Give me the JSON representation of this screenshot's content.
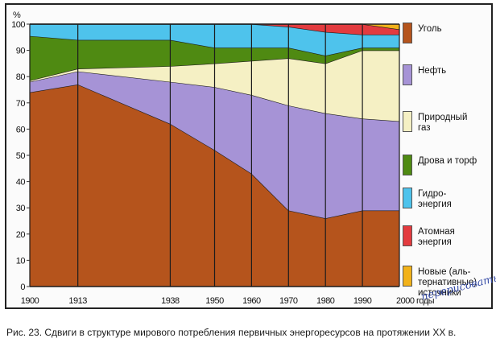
{
  "caption": "Рис. 23. Сдвиги в структуре мирового потребления первичных энергоресурсов на протяжении XX в.",
  "handwritten_note": "перерисовать",
  "y_unit": "%",
  "x_unit": "годы",
  "legend": [
    {
      "key": "coal",
      "label": "Уголь",
      "color": "#b5541c"
    },
    {
      "key": "oil",
      "label": "Нефть",
      "color": "#a693d6"
    },
    {
      "key": "gas",
      "label": "Природный\nгаз",
      "color": "#f5f0c4"
    },
    {
      "key": "wood",
      "label": "Дрова и торф",
      "color": "#4f8a12"
    },
    {
      "key": "hydro",
      "label": "Гидро-\nэнергия",
      "color": "#4ec3ec"
    },
    {
      "key": "nuclear",
      "label": "Атомная\nэнергия",
      "color": "#e33b3f"
    },
    {
      "key": "new",
      "label": "Новые (аль-\nтернативные)\nисточники",
      "color": "#f2b21a"
    }
  ],
  "chart_data": {
    "type": "area",
    "stacked": true,
    "title": "Сдвиги в структуре мирового потребления первичных энергоресурсов на протяжении XX в.",
    "xlabel": "годы",
    "ylabel": "%",
    "ylim": [
      0,
      100
    ],
    "yticks": [
      0,
      10,
      20,
      30,
      40,
      50,
      60,
      70,
      80,
      90,
      100
    ],
    "categories": [
      "1900",
      "1913",
      "1938",
      "1950",
      "1960",
      "1970",
      "1980",
      "1990",
      "2000"
    ],
    "x": [
      1900,
      1913,
      1938,
      1950,
      1960,
      1970,
      1980,
      1990,
      2000
    ],
    "series": [
      {
        "name": "Уголь",
        "values": [
          74,
          77,
          62,
          52,
          43,
          29,
          26,
          29,
          29
        ]
      },
      {
        "name": "Нефть",
        "values": [
          4,
          5,
          16,
          24,
          30,
          40,
          40,
          35,
          34
        ]
      },
      {
        "name": "Природный газ",
        "values": [
          0.5,
          1,
          6,
          9,
          13,
          18,
          19,
          26,
          27
        ]
      },
      {
        "name": "Дрова и торф",
        "values": [
          17,
          11,
          10,
          6,
          5,
          4,
          3,
          1,
          1
        ]
      },
      {
        "name": "Гидроэнергия",
        "values": [
          4.5,
          6,
          6,
          9,
          9,
          8,
          9,
          5,
          5
        ]
      },
      {
        "name": "Атомная энергия",
        "values": [
          0,
          0,
          0,
          0,
          0,
          1,
          3,
          4,
          2
        ]
      },
      {
        "name": "Новые (альтернативные) источники",
        "values": [
          0,
          0,
          0,
          0,
          0,
          0,
          0,
          0,
          2
        ]
      }
    ],
    "grid": false,
    "legend_position": "right"
  }
}
